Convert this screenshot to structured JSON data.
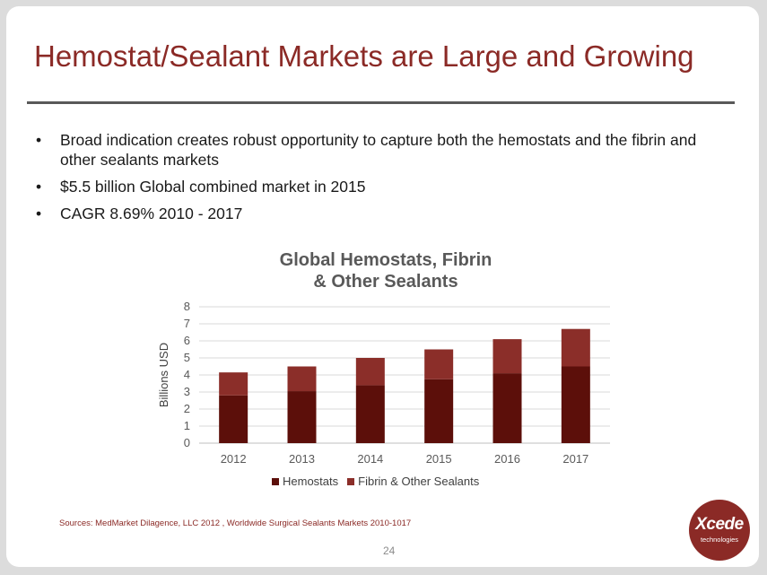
{
  "slide": {
    "title": "Hemostat/Sealant Markets are Large and Growing",
    "bullets": [
      "Broad indication creates robust opportunity to capture both the hemostats and the fibrin and other sealants markets",
      "$5.5 billion Global combined market in 2015",
      "CAGR 8.69% 2010 - 2017"
    ],
    "bullet_char": "•",
    "source": "Sources: MedMarket Dilagence, LLC 2012 , Worldwide Surgical Sealants Markets 2010-1017",
    "page_number": "24",
    "logo": {
      "brand": "Xcede",
      "sub": "technologies"
    }
  },
  "chart_data": {
    "type": "bar",
    "stacked": true,
    "title": "Global Hemostats, Fibrin & Other Sealants",
    "title_lines": [
      "Global Hemostats, Fibrin",
      "& Other Sealants"
    ],
    "xlabel": "",
    "ylabel": "Billions USD",
    "ylim": [
      0,
      8
    ],
    "yticks": [
      0,
      1,
      2,
      3,
      4,
      5,
      6,
      7,
      8
    ],
    "grid": true,
    "legend_position": "bottom",
    "categories": [
      "2012",
      "2013",
      "2014",
      "2015",
      "2016",
      "2017"
    ],
    "series": [
      {
        "name": "Hemostats",
        "color": "#5c0f0a",
        "values": [
          2.8,
          3.05,
          3.4,
          3.75,
          4.1,
          4.5
        ]
      },
      {
        "name": "Fibrin & Other Sealants",
        "color": "#8b2e29",
        "values": [
          1.35,
          1.45,
          1.6,
          1.75,
          2.0,
          2.2
        ]
      }
    ]
  }
}
